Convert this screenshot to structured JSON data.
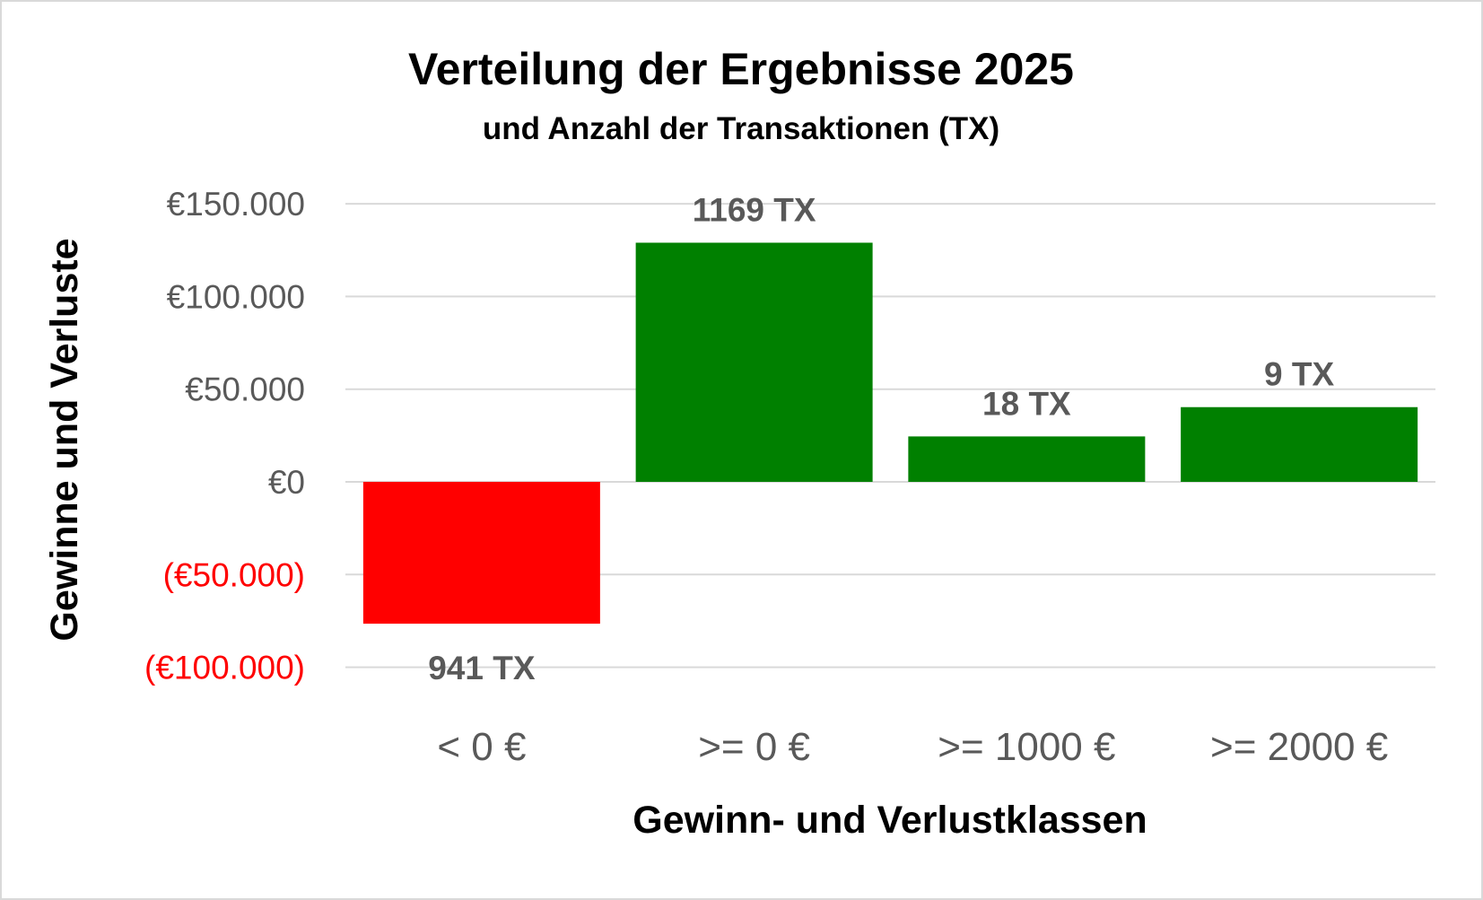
{
  "chart_data": {
    "type": "bar",
    "title": "Verteilung der Ergebnisse 2025",
    "subtitle": "und Anzahl der Transaktionen (TX)",
    "xlabel": "Gewinn- und Verlustklassen",
    "ylabel": "Gewinne und Verluste",
    "categories": [
      "< 0 €",
      ">= 0 €",
      ">= 1000 €",
      ">= 2000 €"
    ],
    "values": [
      -76500,
      129000,
      24500,
      40300
    ],
    "data_labels": [
      "941 TX",
      "1169 TX",
      "18 TX",
      "9 TX"
    ],
    "bar_colors": [
      "#ff0000",
      "#008000",
      "#008000",
      "#008000"
    ],
    "ylim": [
      -100000,
      150000
    ],
    "yticks": [
      150000,
      100000,
      50000,
      0,
      -50000,
      -100000
    ],
    "ytick_labels": [
      "€150.000",
      "€100.000",
      "€50.000",
      "€0",
      "(€50.000)",
      "(€100.000)"
    ],
    "grid": true,
    "legend": "none"
  }
}
